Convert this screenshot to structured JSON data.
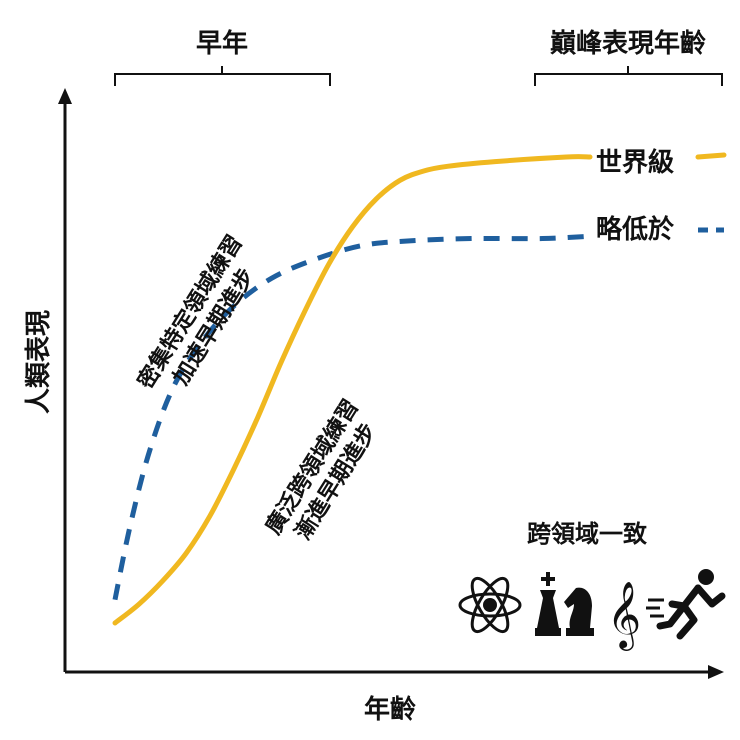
{
  "chart_data": {
    "type": "line",
    "ylabel": "人類表現",
    "xlabel": "年齡",
    "series": [
      {
        "name": "世界級",
        "color": "#f0b820",
        "style": "solid",
        "points": [
          [
            0,
            0.0
          ],
          [
            0.05,
            0.04
          ],
          [
            0.1,
            0.09
          ],
          [
            0.15,
            0.15
          ],
          [
            0.2,
            0.23
          ],
          [
            0.25,
            0.33
          ],
          [
            0.3,
            0.44
          ],
          [
            0.35,
            0.56
          ],
          [
            0.4,
            0.67
          ],
          [
            0.45,
            0.77
          ],
          [
            0.5,
            0.85
          ],
          [
            0.55,
            0.91
          ],
          [
            0.6,
            0.95
          ],
          [
            0.65,
            0.97
          ],
          [
            0.7,
            0.98
          ],
          [
            0.8,
            0.99
          ],
          [
            0.95,
            1.0
          ],
          [
            1.0,
            1.0
          ]
        ]
      },
      {
        "name": "略低於",
        "color": "#1f5f9e",
        "style": "dashed",
        "points": [
          [
            0,
            0.05
          ],
          [
            0.03,
            0.2
          ],
          [
            0.07,
            0.36
          ],
          [
            0.12,
            0.5
          ],
          [
            0.18,
            0.6
          ],
          [
            0.25,
            0.68
          ],
          [
            0.33,
            0.74
          ],
          [
            0.42,
            0.78
          ],
          [
            0.52,
            0.81
          ],
          [
            0.62,
            0.82
          ],
          [
            0.75,
            0.825
          ],
          [
            0.9,
            0.825
          ],
          [
            1.0,
            0.83
          ]
        ]
      }
    ],
    "annotations": [
      {
        "text": "密集特定領域練習",
        "series": "略低於"
      },
      {
        "text": "加速早期進步",
        "series": "略低於"
      },
      {
        "text": "廣泛跨領域練習",
        "series": "世界級"
      },
      {
        "text": "漸進早期進步",
        "series": "世界級"
      }
    ],
    "brackets": [
      {
        "text": "早年"
      },
      {
        "text": "巔峰表現年齡"
      }
    ]
  },
  "legend_box": {
    "title": "跨領域一致",
    "icons": [
      "atom-icon",
      "chess-icon",
      "treble-clef-icon",
      "runner-icon"
    ]
  },
  "colors": {
    "axis": "#111111",
    "worldclass": "#f0b820",
    "lower": "#1f5f9e"
  }
}
